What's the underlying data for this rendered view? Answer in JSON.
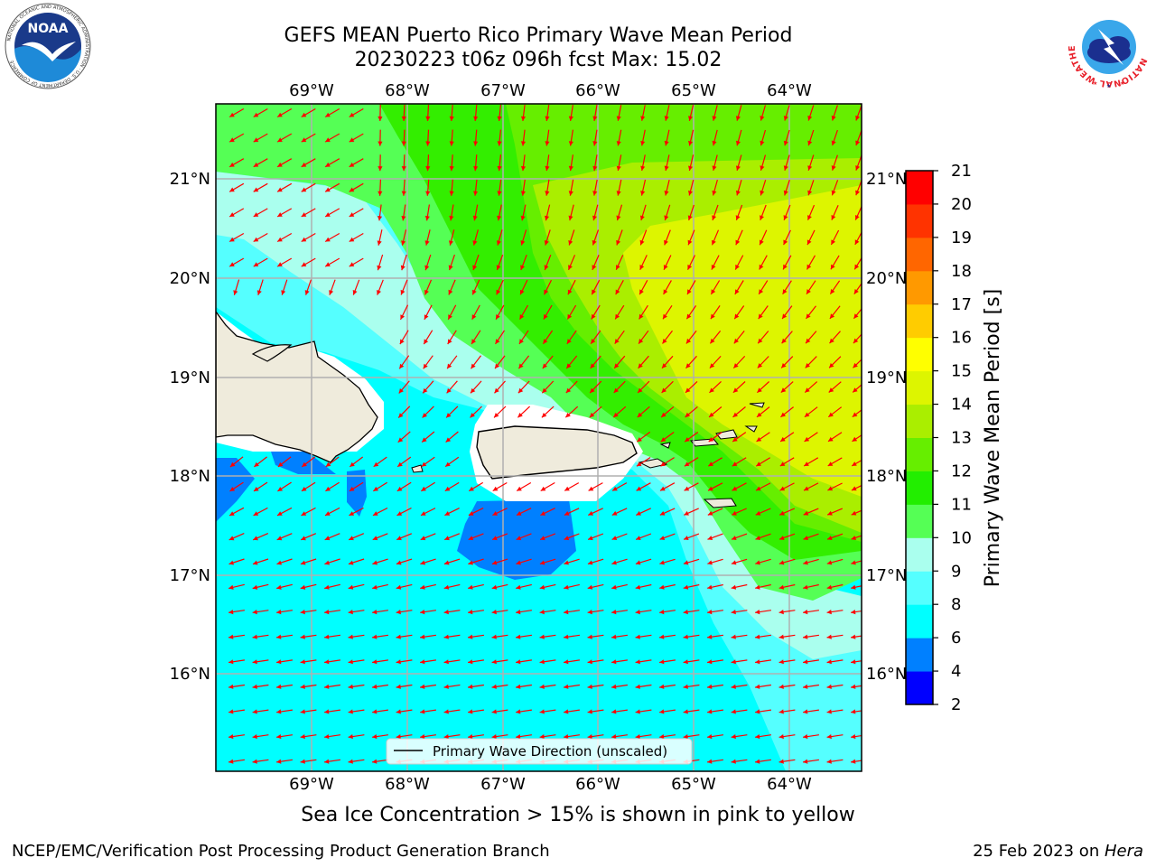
{
  "title": {
    "line1": "GEFS MEAN Puerto Rico Primary Wave Mean Period",
    "line2": "20230223 t06z 096h fcst   Max: 15.02"
  },
  "map": {
    "lon_ticks": [
      "69°W",
      "68°W",
      "67°W",
      "66°W",
      "65°W",
      "64°W"
    ],
    "lat_ticks": [
      "21°N",
      "20°N",
      "19°N",
      "18°N",
      "17°N",
      "16°N"
    ],
    "legend_label": "Primary Wave Direction (unscaled)",
    "arrow_color": "#ff0000",
    "land_color": "#efebdc",
    "grid_color": "#b0b0b0"
  },
  "colorbar": {
    "label": "Primary Wave Mean Period [s]",
    "ticks": [
      "2",
      "4",
      "6",
      "8",
      "9",
      "10",
      "11",
      "12",
      "13",
      "14",
      "15",
      "16",
      "17",
      "18",
      "19",
      "20",
      "21"
    ],
    "colors": [
      "#0000ff",
      "#0080ff",
      "#00ffff",
      "#55ffff",
      "#aaffee",
      "#55ff55",
      "#22ee00",
      "#66ee00",
      "#aaee00",
      "#ddf500",
      "#ffff00",
      "#ffcc00",
      "#ff9900",
      "#ff6600",
      "#ff3300",
      "#ff0000"
    ]
  },
  "chart_data": {
    "type": "heatmap",
    "variable": "Primary Wave Mean Period [s]",
    "max": 15.02,
    "levels": [
      2,
      4,
      6,
      8,
      9,
      10,
      11,
      12,
      13,
      14,
      15,
      16,
      17,
      18,
      19,
      20,
      21
    ]
  },
  "bottom_note": "Sea Ice Concentration > 15% is shown in pink to yellow",
  "footer": {
    "left": "NCEP/EMC/Verification Post Processing Product Generation Branch",
    "right_date": "25 Feb 2023 on ",
    "right_host": "Hera"
  },
  "logos": {
    "noaa_text": "NOAA",
    "noaa_ring": "NATIONAL OCEANIC AND ATMOSPHERIC ADMINISTRATION · U.S. DEPARTMENT OF COMMERCE",
    "nws_ring": "NATIONAL WEATHER SERVICE"
  }
}
